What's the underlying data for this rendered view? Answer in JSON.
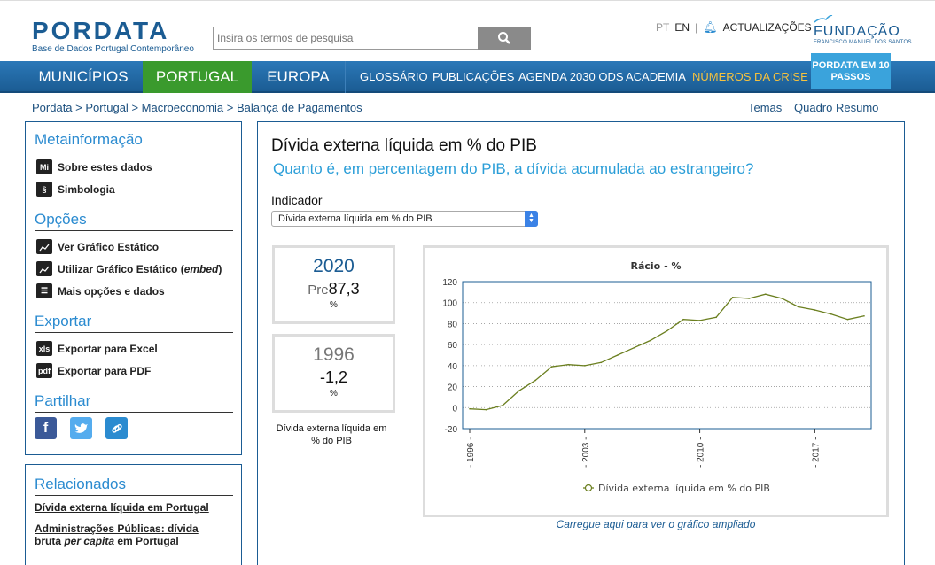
{
  "header": {
    "logo": "PORDATA",
    "logo_sub": "Base de Dados Portugal Contemporâneo",
    "search_placeholder": "Insira os termos de pesquisa",
    "lang_pt": "PT",
    "lang_en": "EN",
    "lang_sep": "|",
    "updates": "ACTUALIZAÇÕES",
    "fundacao": "FUNDAÇÃO",
    "fundacao_sub": "FRANCISCO MANUEL DOS SANTOS"
  },
  "nav": {
    "main": [
      "MUNICÍPIOS",
      "PORTUGAL",
      "EUROPA"
    ],
    "sub": [
      "GLOSSÁRIO",
      "PUBLICAÇÕES",
      "AGENDA 2030 ODS",
      "ACADEMIA"
    ],
    "crise": "NÚMEROS DA CRISE",
    "passos": "PORDATA EM 10 PASSOS"
  },
  "breadcrumb": [
    "Pordata",
    "Portugal",
    "Macroeconomia",
    "Balança de Pagamentos"
  ],
  "breadcrumb_sep": ">",
  "right_links": [
    "Temas",
    "Quadro Resumo"
  ],
  "sidebar": {
    "meta_title": "Metainformação",
    "meta_items": [
      {
        "icon": "Mi",
        "label": "Sobre estes dados"
      },
      {
        "icon": "§",
        "label": "Simbologia"
      }
    ],
    "options_title": "Opções",
    "option_items": [
      {
        "icon": "chart-icon",
        "label": "Ver Gráfico Estático"
      },
      {
        "icon": "chart-embed-icon",
        "label": "Utilizar Gráfico Estático (",
        "em": "embed",
        "tail": ")"
      },
      {
        "icon": "list-icon",
        "label": "Mais opções e dados"
      }
    ],
    "export_title": "Exportar",
    "export_items": [
      {
        "icon": "xls",
        "label": "Exportar para Excel"
      },
      {
        "icon": "pdf",
        "label": "Exportar para PDF"
      }
    ],
    "share_title": "Partilhar",
    "share_icons": [
      "facebook-icon",
      "twitter-icon",
      "link-icon"
    ]
  },
  "related": {
    "title": "Relacionados",
    "item1": "Dívida externa líquida em Portugal",
    "item2_a": "Administrações Públicas: dívida bruta ",
    "item2_em": "per capita",
    "item2_b": " em Portugal"
  },
  "main": {
    "title": "Dívida externa líquida em % do PIB",
    "subtitle": "Quanto é, em percentagem do PIB, a dívida acumulada ao estrangeiro?",
    "indicator_label": "Indicador",
    "indicator_value": "Dívida externa líquida em % do PIB",
    "stat_latest": {
      "year": "2020",
      "prefix": "Pre",
      "value": "87,3",
      "unit": "%"
    },
    "stat_first": {
      "year": "1996",
      "value": "-1,2",
      "unit": "%"
    },
    "stat_caption": "Dívida externa líquida em % do PIB",
    "zoom_link": "Carregue aqui para ver o gráfico ampliado"
  },
  "colors": {
    "brand": "#1b5c93",
    "accent": "#2b9ed8",
    "green": "#3a9a2d",
    "series": "#6b7f1f"
  },
  "chart_data": {
    "type": "line",
    "title": "Rácio - %",
    "x": [
      1996,
      1997,
      1998,
      1999,
      2000,
      2001,
      2002,
      2003,
      2004,
      2005,
      2006,
      2007,
      2008,
      2009,
      2010,
      2011,
      2012,
      2013,
      2014,
      2015,
      2016,
      2017,
      2018,
      2019,
      2020
    ],
    "series": [
      {
        "name": "Dívida externa líquida em % do PIB",
        "values": [
          -1.2,
          -2,
          2,
          16,
          26,
          39,
          41,
          40,
          43,
          50,
          57,
          64,
          73,
          84,
          83,
          86,
          105,
          104,
          108,
          104,
          96,
          93,
          89,
          84,
          87.3
        ]
      }
    ],
    "yticks": [
      120,
      100,
      80,
      60,
      40,
      20,
      0,
      -20
    ],
    "xtick_labels": [
      "1996",
      "2003",
      "2010",
      "2017"
    ],
    "ylim": [
      -20,
      120
    ],
    "xlim": [
      1996,
      2020
    ],
    "grid": true,
    "legend": "bottom"
  }
}
